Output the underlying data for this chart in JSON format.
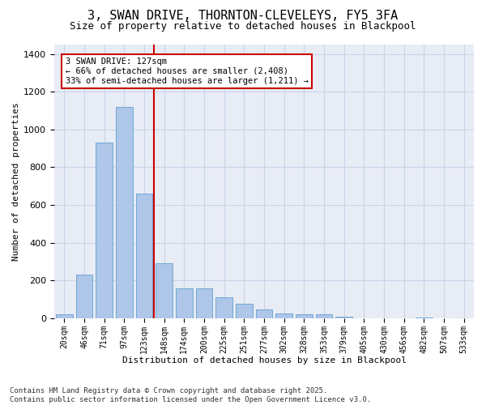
{
  "title_line1": "3, SWAN DRIVE, THORNTON-CLEVELEYS, FY5 3FA",
  "title_line2": "Size of property relative to detached houses in Blackpool",
  "xlabel": "Distribution of detached houses by size in Blackpool",
  "ylabel": "Number of detached properties",
  "categories": [
    "20sqm",
    "46sqm",
    "71sqm",
    "97sqm",
    "123sqm",
    "148sqm",
    "174sqm",
    "200sqm",
    "225sqm",
    "251sqm",
    "277sqm",
    "302sqm",
    "328sqm",
    "353sqm",
    "379sqm",
    "405sqm",
    "430sqm",
    "456sqm",
    "482sqm",
    "507sqm",
    "533sqm"
  ],
  "values": [
    20,
    230,
    930,
    1120,
    660,
    290,
    160,
    160,
    110,
    75,
    45,
    25,
    20,
    20,
    10,
    0,
    0,
    0,
    5,
    0,
    0
  ],
  "bar_color": "#aec6e8",
  "bar_edge_color": "#6fa8d5",
  "bar_width": 0.85,
  "red_line_index": 4.5,
  "red_line_color": "#cc0000",
  "annotation_line1": "3 SWAN DRIVE: 127sqm",
  "annotation_line2": "← 66% of detached houses are smaller (2,408)",
  "annotation_line3": "33% of semi-detached houses are larger (1,211) →",
  "annotation_box_color": "#cc0000",
  "annotation_text_color": "#000000",
  "ylim": [
    0,
    1450
  ],
  "yticks": [
    0,
    200,
    400,
    600,
    800,
    1000,
    1200,
    1400
  ],
  "grid_color": "#c8d4e8",
  "bg_color": "#e8ecf5",
  "footer_text": "Contains HM Land Registry data © Crown copyright and database right 2025.\nContains public sector information licensed under the Open Government Licence v3.0.",
  "title_fontsize": 11,
  "subtitle_fontsize": 9,
  "axis_label_fontsize": 8,
  "tick_fontsize": 7,
  "footer_fontsize": 6.5,
  "annotation_fontsize": 7.5
}
